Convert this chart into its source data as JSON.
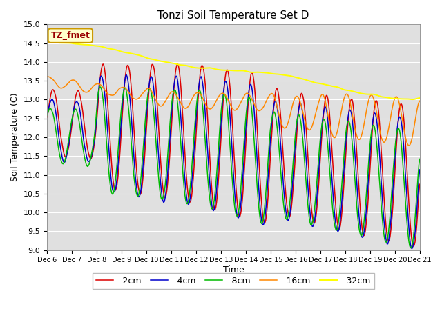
{
  "title": "Tonzi Soil Temperature Set D",
  "ylabel": "Soil Temperature (C)",
  "xlabel": "Time",
  "ylim": [
    9.0,
    15.0
  ],
  "yticks": [
    9.0,
    9.5,
    10.0,
    10.5,
    11.0,
    11.5,
    12.0,
    12.5,
    13.0,
    13.5,
    14.0,
    14.5,
    15.0
  ],
  "bg_color": "#e0e0e0",
  "legend_label": "TZ_fmet",
  "legend_bg": "#ffffcc",
  "legend_border": "#cc9900",
  "legend_text_color": "#990000",
  "line_colors": {
    "-2cm": "#dd0000",
    "-4cm": "#0000cc",
    "-8cm": "#00bb00",
    "-16cm": "#ff8800",
    "-32cm": "#ffff00"
  },
  "n_points": 480,
  "x_start": 6,
  "x_end": 21,
  "xtick_positions": [
    6,
    7,
    8,
    9,
    10,
    11,
    12,
    13,
    14,
    15,
    16,
    17,
    18,
    19,
    20,
    21
  ],
  "xtick_labels": [
    "Dec 6",
    "Dec 7",
    "Dec 8",
    "Dec 9",
    "Dec 10",
    "Dec 11",
    "Dec 12",
    "Dec 13",
    "Dec 14",
    "Dec 15",
    "Dec 16",
    "Dec 17",
    "Dec 18",
    "Dec 19",
    "Dec 20",
    "Dec 21"
  ]
}
